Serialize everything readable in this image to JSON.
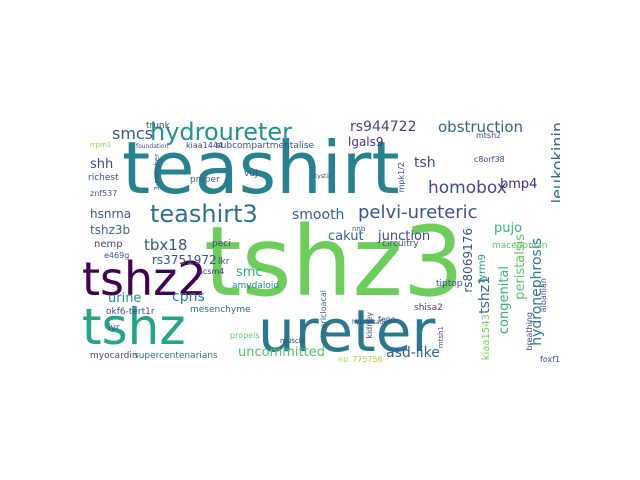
{
  "wordcloud": {
    "words": [
      {
        "text": "teashirt",
        "color": "#26828e"
      },
      {
        "text": "tshz3",
        "color": "#6ccd5a"
      },
      {
        "text": "tshz2",
        "color": "#440154"
      },
      {
        "text": "ureter",
        "color": "#2a788e"
      },
      {
        "text": "tshz",
        "color": "#21a585"
      },
      {
        "text": "hydroureter",
        "color": "#21918c"
      },
      {
        "text": "teashirt3",
        "color": "#2c728e"
      },
      {
        "text": "smcs",
        "color": "#39568c"
      },
      {
        "text": "rs944722",
        "color": "#414487"
      },
      {
        "text": "obstruction",
        "color": "#33638d"
      },
      {
        "text": "pelvi-ureteric",
        "color": "#3b528b"
      },
      {
        "text": "homobox",
        "color": "#3e4a89"
      },
      {
        "text": "leukokinin",
        "color": "#2f6c8e"
      },
      {
        "text": "lgals9",
        "color": "#46327e"
      },
      {
        "text": "smooth",
        "color": "#35608d"
      },
      {
        "text": "tsh",
        "color": "#3e4989"
      },
      {
        "text": "tbx18",
        "color": "#3b528b"
      },
      {
        "text": "cakut",
        "color": "#33628d"
      },
      {
        "text": "junction",
        "color": "#3e4989"
      },
      {
        "text": "pujo",
        "color": "#35b779"
      },
      {
        "text": "bmp4",
        "color": "#482878"
      },
      {
        "text": "shh",
        "color": "#3e4989"
      },
      {
        "text": "hsnrna",
        "color": "#39558c"
      },
      {
        "text": "tshz3b",
        "color": "#31688e"
      },
      {
        "text": "rs3751972",
        "color": "#3b528b"
      },
      {
        "text": "smc",
        "color": "#29af7f"
      },
      {
        "text": "cpns",
        "color": "#26828e"
      },
      {
        "text": "urine",
        "color": "#21918c"
      },
      {
        "text": "uncommitted",
        "color": "#52c569"
      },
      {
        "text": "asd-like",
        "color": "#33638d"
      },
      {
        "text": "hydronephrosis",
        "color": "#2a788e"
      },
      {
        "text": "peristalsis",
        "color": "#5ec962"
      },
      {
        "text": "congenital",
        "color": "#35b779"
      },
      {
        "text": "tshz1",
        "color": "#31688e"
      },
      {
        "text": "rs8069176",
        "color": "#3b528b"
      },
      {
        "text": "lyrm9",
        "color": "#1f9e89"
      },
      {
        "text": "kiaa1543",
        "color": "#75d054"
      },
      {
        "text": "amydaloid",
        "color": "#238a8d"
      },
      {
        "text": "nemp",
        "color": "#414487"
      },
      {
        "text": "mesenchyme",
        "color": "#31688e"
      },
      {
        "text": "okf6-tert1r",
        "color": "#3e4a89"
      },
      {
        "text": "lyr",
        "color": "#3b528b"
      },
      {
        "text": "myocardin",
        "color": "#404688"
      },
      {
        "text": "supercentenarians",
        "color": "#2c728e"
      },
      {
        "text": "proper",
        "color": "#35608d"
      },
      {
        "text": "subcompartmentalise",
        "color": "#3b528b"
      },
      {
        "text": "kiaa1444",
        "color": "#443a83"
      },
      {
        "text": "trunk",
        "color": "#39568c"
      },
      {
        "text": "richest",
        "color": "#3e4a89"
      },
      {
        "text": "znf537",
        "color": "#3e4989"
      },
      {
        "text": "e469g",
        "color": "#3b528b"
      },
      {
        "text": "acsm4",
        "color": "#46307e"
      },
      {
        "text": "vuj",
        "color": "#3b528b"
      },
      {
        "text": "peci",
        "color": "#3e4989"
      },
      {
        "text": "lkr",
        "color": "#3e4989"
      },
      {
        "text": "circuitry",
        "color": "#3b528b"
      },
      {
        "text": "macedonian",
        "color": "#5ec962"
      },
      {
        "text": "tiptop",
        "color": "#3e4989"
      },
      {
        "text": "shisa2",
        "color": "#414487"
      },
      {
        "text": "feno",
        "color": "#3e4989"
      },
      {
        "text": "kidney",
        "color": "#3b528b"
      },
      {
        "text": "pericloacal",
        "color": "#3b528b"
      },
      {
        "text": "mtsh2",
        "color": "#3e4989"
      },
      {
        "text": "c8orf38",
        "color": "#3e4989"
      },
      {
        "text": "mpk1/2",
        "color": "#3b528b"
      },
      {
        "text": "foxf1",
        "color": "#3e4989"
      },
      {
        "text": "breathing",
        "color": "#3b528b"
      },
      {
        "text": "albanian",
        "color": "#3b528b"
      },
      {
        "text": "muscle",
        "color": "#3e4989"
      },
      {
        "text": "propels",
        "color": "#5ec962"
      },
      {
        "text": "nnb",
        "color": "#3b528b"
      },
      {
        "text": "mtsh1",
        "color": "#3e4989"
      },
      {
        "text": "np_775756",
        "color": "#a0da39"
      },
      {
        "text": "3-member",
        "color": "#3b528b"
      },
      {
        "text": "hybridisation",
        "color": "#3b528b"
      },
      {
        "text": "rrpm1",
        "color": "#8fd744"
      },
      {
        "text": "cystic",
        "color": "#3e4989"
      },
      {
        "text": "foundation",
        "color": "#3e4989"
      }
    ]
  }
}
